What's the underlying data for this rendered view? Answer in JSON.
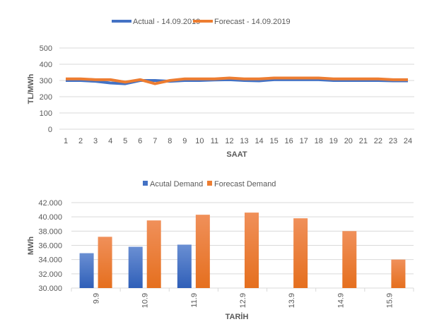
{
  "colors": {
    "actual": "#4472C4",
    "forecast": "#ED7D31",
    "grid": "#D9D9D9",
    "text": "#595959"
  },
  "chart_data": [
    {
      "type": "line",
      "title": "",
      "xlabel": "SAAT",
      "ylabel": "TL/MWh",
      "ylim": [
        0,
        500
      ],
      "yticks": [
        "0",
        "100",
        "200",
        "300",
        "400",
        "500"
      ],
      "legend_position": "top",
      "x": [
        "1",
        "2",
        "3",
        "4",
        "5",
        "6",
        "7",
        "8",
        "9",
        "10",
        "11",
        "12",
        "13",
        "14",
        "15",
        "16",
        "17",
        "18",
        "19",
        "20",
        "21",
        "22",
        "23",
        "24"
      ],
      "series": [
        {
          "name": "Actual - 14.09.2019",
          "color_key": "actual",
          "values": [
            300,
            300,
            295,
            285,
            280,
            300,
            300,
            295,
            300,
            300,
            303,
            305,
            300,
            298,
            305,
            305,
            305,
            305,
            300,
            300,
            300,
            300,
            298,
            298
          ]
        },
        {
          "name": "Forecast - 14.09.2019",
          "color_key": "forecast",
          "values": [
            310,
            310,
            305,
            305,
            290,
            305,
            280,
            300,
            310,
            310,
            310,
            315,
            310,
            310,
            315,
            315,
            315,
            315,
            310,
            310,
            310,
            310,
            305,
            305
          ]
        }
      ]
    },
    {
      "type": "bar",
      "title": "",
      "xlabel": "TARİH",
      "ylabel": "MWh",
      "ylim": [
        30000,
        42000
      ],
      "yticks": [
        "30.000",
        "32.000",
        "34.000",
        "36.000",
        "38.000",
        "40.000",
        "42.000"
      ],
      "legend_position": "top",
      "categories": [
        "9.9",
        "10.9",
        "11.9",
        "12.9",
        "13.9",
        "14.9",
        "15.9"
      ],
      "series": [
        {
          "name": "Acutal Demand",
          "color_key": "actual",
          "values": [
            34900,
            35800,
            36100,
            null,
            null,
            null,
            null
          ]
        },
        {
          "name": "Forecast Demand",
          "color_key": "forecast",
          "values": [
            37200,
            39500,
            40300,
            40600,
            39800,
            38000,
            34000
          ]
        }
      ]
    }
  ]
}
